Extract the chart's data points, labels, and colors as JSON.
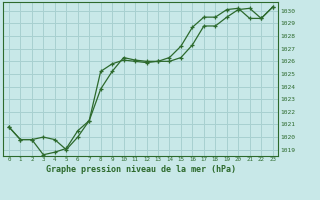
{
  "line1_x": [
    0,
    1,
    2,
    3,
    4,
    5,
    6,
    7,
    8,
    9,
    10,
    11,
    12,
    13,
    14,
    15,
    16,
    17,
    18,
    19,
    20,
    21,
    22,
    23
  ],
  "line1_y": [
    1020.8,
    1019.8,
    1019.8,
    1018.6,
    1018.8,
    1019.1,
    1020.5,
    1021.3,
    1023.8,
    1025.2,
    1026.3,
    1026.1,
    1026.0,
    1026.0,
    1026.0,
    1026.3,
    1027.3,
    1028.8,
    1028.8,
    1029.5,
    1030.1,
    1030.2,
    1029.4,
    1030.3
  ],
  "line2_x": [
    0,
    1,
    2,
    3,
    4,
    5,
    6,
    7,
    8,
    9,
    10,
    11,
    12,
    13,
    14,
    15,
    16,
    17,
    18,
    19,
    20,
    21,
    22,
    23
  ],
  "line2_y": [
    1020.8,
    1019.8,
    1019.8,
    1020.0,
    1019.8,
    1019.0,
    1020.0,
    1021.3,
    1025.2,
    1025.8,
    1026.1,
    1026.0,
    1025.9,
    1026.0,
    1026.3,
    1027.2,
    1028.7,
    1029.5,
    1029.5,
    1030.1,
    1030.2,
    1029.4,
    1029.4,
    1030.3
  ],
  "line_color": "#2d6a2d",
  "bg_color": "#c8e8e8",
  "grid_color": "#a8d0d0",
  "xlabel": "Graphe pression niveau de la mer (hPa)",
  "ylim": [
    1018.5,
    1030.7
  ],
  "xlim": [
    -0.5,
    23.5
  ],
  "yticks": [
    1019,
    1020,
    1021,
    1022,
    1023,
    1024,
    1025,
    1026,
    1027,
    1028,
    1029,
    1030
  ],
  "xticks": [
    0,
    1,
    2,
    3,
    4,
    5,
    6,
    7,
    8,
    9,
    10,
    11,
    12,
    13,
    14,
    15,
    16,
    17,
    18,
    19,
    20,
    21,
    22,
    23
  ]
}
